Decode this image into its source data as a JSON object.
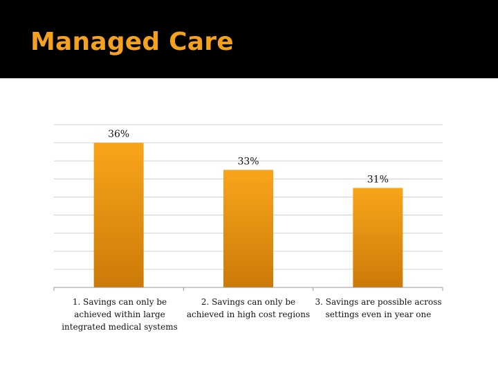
{
  "slide": {
    "title": "Managed Care"
  },
  "colors": {
    "title_bar": "#000000",
    "title_text": "#f4a21d",
    "bar_top": "#f9a51b",
    "bar_bottom": "#cc7a08",
    "grid": "#d0d0d0"
  },
  "chart_data": {
    "type": "bar",
    "categories": [
      "1. Savings can only be achieved within large integrated medical systems",
      "2. Savings can only be achieved in high cost regions",
      "3. Savings are possible across settings even in year one"
    ],
    "values": [
      36,
      33,
      31
    ],
    "data_labels": [
      "36%",
      "33%",
      "31%"
    ],
    "title": "",
    "xlabel": "",
    "ylabel": "",
    "ylim": [
      20,
      38
    ],
    "grid": true
  }
}
